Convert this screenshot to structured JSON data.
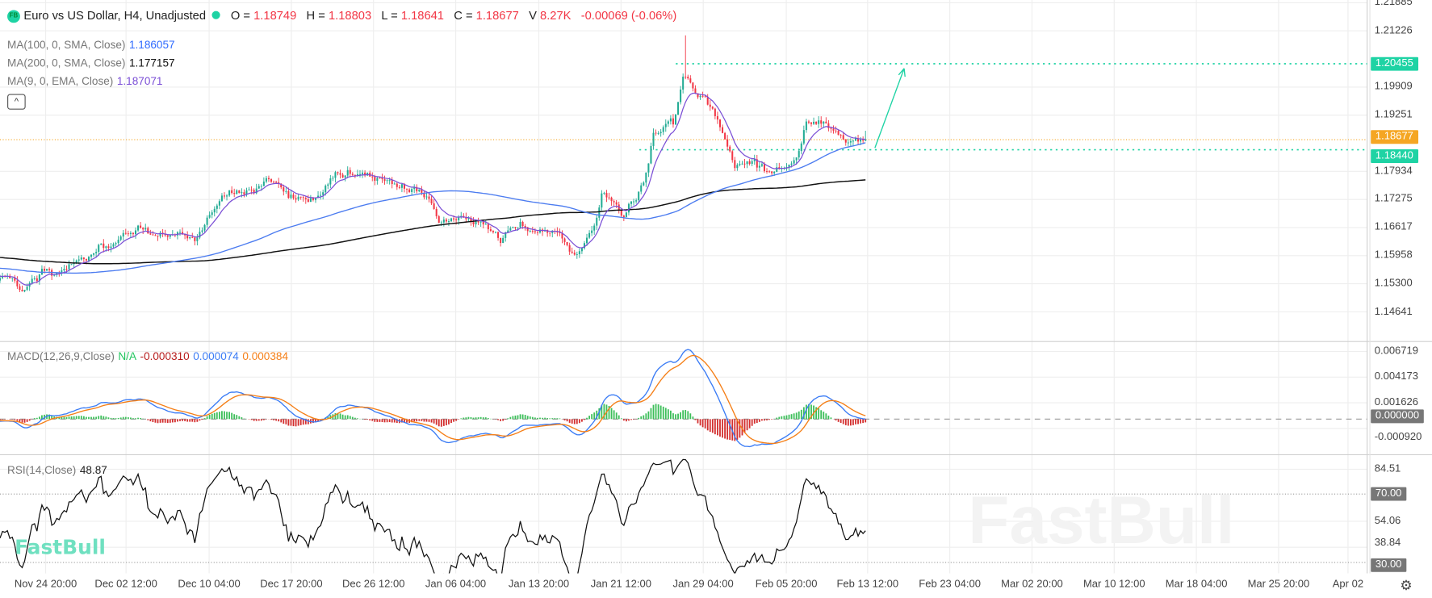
{
  "header": {
    "logo_text": "FB",
    "title": "Euro vs US Dollar, H4, Unadjusted",
    "status_color": "#1ed3a4",
    "o_label": "O =",
    "o": "1.18749",
    "h_label": "H =",
    "h": "1.18803",
    "l_label": "L =",
    "l": "1.18641",
    "c_label": "C =",
    "c": "1.18677",
    "v_label": "V",
    "v": "8.27K",
    "change": "-0.00069 (-0.06%)"
  },
  "indicators": {
    "ma100": {
      "label": "MA(100, 0, SMA, Close)",
      "value": "1.186057",
      "color": "#2f6bff"
    },
    "ma200": {
      "label": "MA(200, 0, SMA, Close)",
      "value": "1.177157",
      "color": "#111111"
    },
    "ema9": {
      "label": "MA(9, 0, EMA, Close)",
      "value": "1.187071",
      "color": "#7b4fd6"
    },
    "macd": {
      "label": "MACD(12,26,9,Close)",
      "na": "N/A",
      "hist": "-0.000310",
      "macd": "0.000074",
      "signal": "0.000384"
    },
    "rsi": {
      "label": "RSI(14,Close)",
      "value": "48.87"
    }
  },
  "collapse_icon": "chevron-up-icon",
  "watermark": "FastBull",
  "colors": {
    "up": "#22ab94",
    "down": "#f23645",
    "macd_line": "#3b7cf5",
    "signal_line": "#f57f17",
    "level": "#1ed3a4",
    "current": "#f5a623"
  },
  "chart_data": {
    "type": "candlestick",
    "price_ticks": [
      "1.21885",
      "1.21226",
      "1.19909",
      "1.19251",
      "1.17934",
      "1.17275",
      "1.16617",
      "1.15958",
      "1.15300",
      "1.14641"
    ],
    "price_tags": [
      {
        "value": "1.20455",
        "color": "#1ed3a4"
      },
      {
        "value": "1.18440",
        "color": "#1ed3a4"
      },
      {
        "value": "1.18677",
        "color": "#f5a623"
      }
    ],
    "macd_ticks": [
      "0.006719",
      "0.004173",
      "0.001626",
      "-0.000920"
    ],
    "macd_zero_tag": "0.000000",
    "rsi_ticks": [
      "84.51",
      "54.06",
      "38.84"
    ],
    "rsi_tags": [
      "70.00",
      "30.00"
    ],
    "time_labels": [
      "Nov 24 20:00",
      "Dec 02 12:00",
      "Dec 10 04:00",
      "Dec 17 20:00",
      "Dec 26 12:00",
      "Jan 06 04:00",
      "Jan 13 20:00",
      "Jan 21 12:00",
      "Jan 29 04:00",
      "Feb 05 20:00",
      "Feb 13 12:00",
      "Feb 23 04:00",
      "Mar 02 20:00",
      "Mar 10 12:00",
      "Mar 18 04:00",
      "Mar 25 20:00",
      "Apr 02"
    ],
    "close_path": [
      [
        "Nov 20",
        1.1542
      ],
      [
        "Nov 22",
        1.1521
      ],
      [
        "Nov 24",
        1.1553
      ],
      [
        "Nov 27",
        1.1585
      ],
      [
        "Dec 1",
        1.1628
      ],
      [
        "Dec 3",
        1.167
      ],
      [
        "Dec 6",
        1.1649
      ],
      [
        "Dec 9",
        1.1628
      ],
      [
        "Dec 10",
        1.166
      ],
      [
        "Dec 12",
        1.1746
      ],
      [
        "Dec 15",
        1.1746
      ],
      [
        "Dec 16",
        1.1778
      ],
      [
        "Dec 19",
        1.1735
      ],
      [
        "Dec 21",
        1.1724
      ],
      [
        "Dec 22",
        1.1767
      ],
      [
        "Dec 24",
        1.1793
      ],
      [
        "Dec 27",
        1.1778
      ],
      [
        "Dec 29",
        1.1757
      ],
      [
        "Jan 1",
        1.1735
      ],
      [
        "Jan 2",
        1.1681
      ],
      [
        "Jan 6",
        1.1681
      ],
      [
        "Jan 8",
        1.1628
      ],
      [
        "Jan 10",
        1.1681
      ],
      [
        "Jan 12",
        1.1649
      ],
      [
        "Jan 14",
        1.1628
      ],
      [
        "Jan 15",
        1.16
      ],
      [
        "Jan 17",
        1.1649
      ],
      [
        "Jan 18",
        1.1746
      ],
      [
        "Jan 20",
        1.1692
      ],
      [
        "Jan 22",
        1.1757
      ],
      [
        "Jan 23",
        1.1874
      ],
      [
        "Jan 25",
        1.1906
      ],
      [
        "Jan 26",
        1.2013
      ],
      [
        "Jan 27",
        1.196
      ],
      [
        "Jan 28",
        1.197
      ],
      [
        "Jan 30",
        1.1885
      ],
      [
        "Jan 31",
        1.18
      ],
      [
        "Feb 1",
        1.1821
      ],
      [
        "Feb 4",
        1.1789
      ],
      [
        "Feb 6",
        1.1821
      ],
      [
        "Feb 7",
        1.1906
      ],
      [
        "Feb 9",
        1.1906
      ],
      [
        "Feb 11",
        1.1874
      ],
      [
        "Feb 13",
        1.18677
      ]
    ],
    "period_high": 1.2112,
    "levels": [
      1.20455,
      1.1844
    ],
    "current_price": 1.18677
  }
}
